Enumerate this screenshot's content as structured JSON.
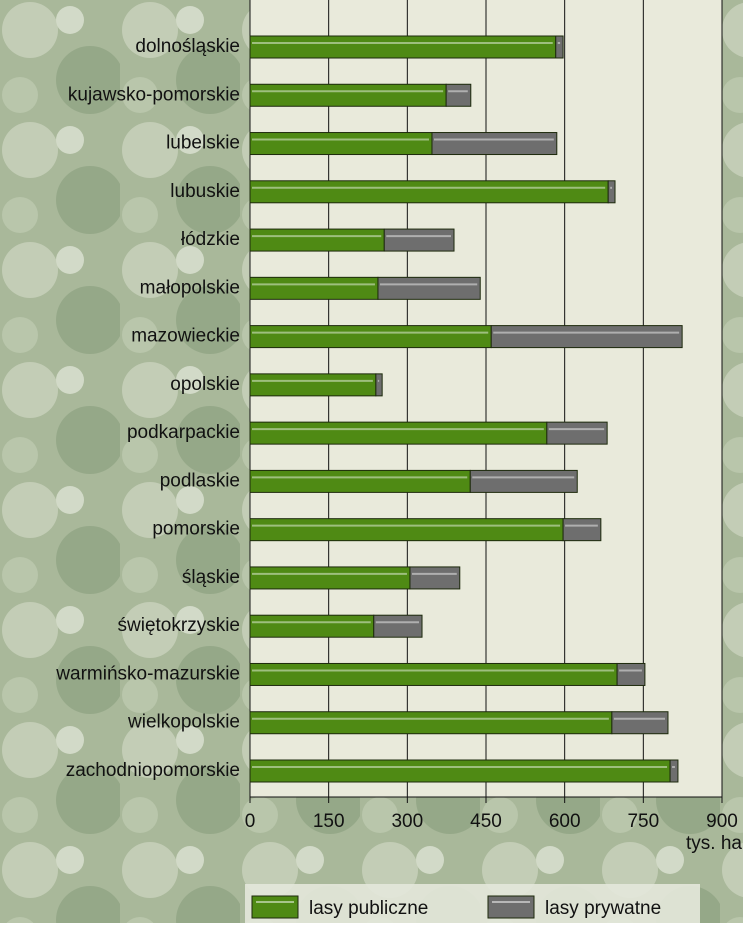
{
  "chart_data": {
    "type": "stacked-barh",
    "categories": [
      "dolnośląskie",
      "kujawsko-pomorskie",
      "lubelskie",
      "lubuskie",
      "łódzkie",
      "małopolskie",
      "mazowieckie",
      "opolskie",
      "podkarpackie",
      "podlaskie",
      "pomorskie",
      "śląskie",
      "świętokrzyskie",
      "warmińsko-mazurskie",
      "wielkopolskie",
      "zachodniopomorskie"
    ],
    "series": [
      {
        "name": "lasy publiczne",
        "color": "#4f8a14",
        "values": [
          583,
          374,
          347,
          683,
          256,
          244,
          460,
          240,
          566,
          420,
          597,
          305,
          236,
          700,
          690,
          801
        ]
      },
      {
        "name": "lasy prywatne",
        "color": "#6e6e6e",
        "values": [
          14,
          47,
          238,
          13,
          133,
          195,
          364,
          12,
          115,
          204,
          72,
          95,
          92,
          53,
          107,
          15
        ]
      }
    ],
    "xlim": [
      0,
      900
    ],
    "xticks": [
      0,
      150,
      300,
      450,
      600,
      750,
      900
    ],
    "x_unit": "tys. ha",
    "grid": true,
    "legend": "bottom"
  }
}
